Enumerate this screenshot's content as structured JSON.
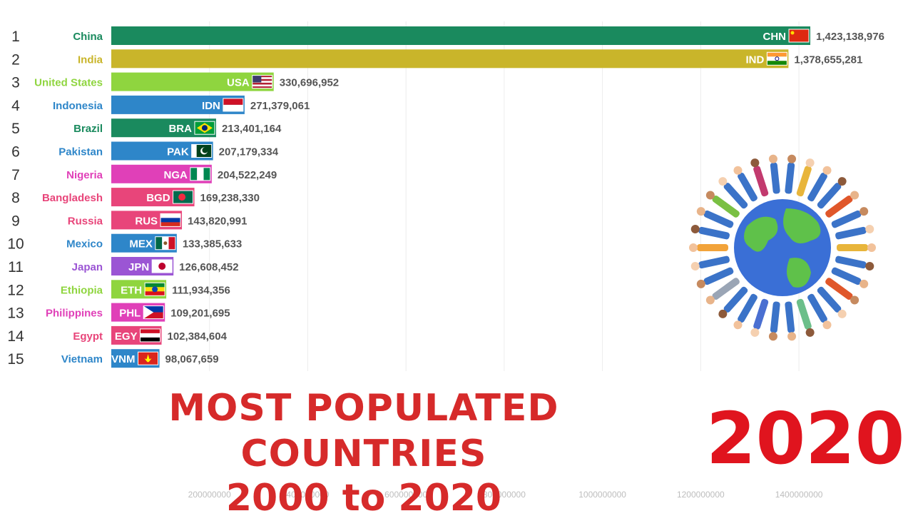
{
  "title": {
    "line1": "MOST POPULATED COUNTRIES",
    "line2": "2000 to 2020"
  },
  "year": "2020",
  "colors": {
    "title": "#d62a2a",
    "year": "#e0141e",
    "tick": "#bdbdbd",
    "value": "#555555"
  },
  "chart_data": {
    "type": "bar",
    "orientation": "horizontal",
    "categories": [
      "China",
      "India",
      "United States",
      "Indonesia",
      "Brazil",
      "Pakistan",
      "Nigeria",
      "Bangladesh",
      "Russia",
      "Mexico",
      "Japan",
      "Ethiopia",
      "Philippines",
      "Egypt",
      "Vietnam"
    ],
    "ranks": [
      "1",
      "2",
      "3",
      "4",
      "5",
      "6",
      "7",
      "8",
      "9",
      "10",
      "11",
      "12",
      "13",
      "14",
      "15"
    ],
    "codes": [
      "CHN",
      "IND",
      "USA",
      "IDN",
      "BRA",
      "PAK",
      "NGA",
      "BGD",
      "RUS",
      "MEX",
      "JPN",
      "ETH",
      "PHL",
      "EGY",
      "VNM"
    ],
    "values": [
      1423138976,
      1378655281,
      330696952,
      271379061,
      213401164,
      207179334,
      204522249,
      169238330,
      143820991,
      133385633,
      126608452,
      111934356,
      109201695,
      102384604,
      98067659
    ],
    "value_labels": [
      "1,423,138,976",
      "1,378,655,281",
      "330,696,952",
      "271,379,061",
      "213,401,164",
      "207,179,334",
      "204,522,249",
      "169,238,330",
      "143,820,991",
      "133,385,633",
      "126,608,452",
      "111,934,356",
      "109,201,695",
      "102,384,604",
      "98,067,659"
    ],
    "bar_colors": [
      "#1a8a5e",
      "#c9b52a",
      "#8fd53f",
      "#2e86c9",
      "#1a8a5e",
      "#2e86c9",
      "#e040b8",
      "#e8457a",
      "#e8457a",
      "#2e86c9",
      "#9b55d4",
      "#8fd53f",
      "#e040b8",
      "#e8457a",
      "#2e86c9"
    ],
    "label_colors": [
      "#1a8a5e",
      "#c9b52a",
      "#8fd53f",
      "#2e86c9",
      "#1a8a5e",
      "#2e86c9",
      "#e040b8",
      "#e8457a",
      "#e8457a",
      "#2e86c9",
      "#9b55d4",
      "#8fd53f",
      "#e040b8",
      "#e8457a",
      "#2e86c9"
    ],
    "flags": [
      "china-flag",
      "india-flag",
      "usa-flag",
      "indonesia-flag",
      "brazil-flag",
      "pakistan-flag",
      "nigeria-flag",
      "bangladesh-flag",
      "russia-flag",
      "mexico-flag",
      "japan-flag",
      "ethiopia-flag",
      "philippines-flag",
      "egypt-flag",
      "vietnam-flag"
    ],
    "xticks": [
      200000000,
      400000000,
      600000000,
      800000000,
      1000000000,
      1200000000,
      1400000000
    ],
    "xtick_labels": [
      "200000000",
      "400000000",
      "600000000",
      "800000000",
      "1000000000",
      "1200000000",
      "1400000000"
    ],
    "xlim": [
      0,
      1530000000
    ],
    "grid": true,
    "legend": "none"
  }
}
